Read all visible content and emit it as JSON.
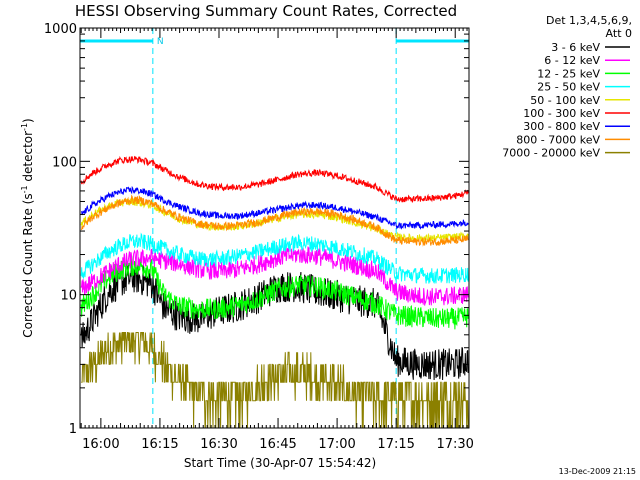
{
  "chart_data": {
    "type": "line",
    "title": "HESSI Observing Summary Count Rates, Corrected",
    "xlabel": "Start Time (30-Apr-07 15:54:42)",
    "ylabel_main": "Corrected Count Rate (s",
    "ylabel_exp1": "-1",
    "ylabel_mid": " detector",
    "ylabel_exp2": "-1",
    "ylabel_end": ")",
    "x_ticks": [
      "16:00",
      "16:15",
      "16:30",
      "16:45",
      "17:00",
      "17:15",
      "17:30"
    ],
    "x_tick_minutes": [
      0,
      15,
      30,
      45,
      60,
      75,
      90
    ],
    "x_range_minutes": [
      -5.3,
      93.5
    ],
    "y_scale": "log",
    "y_range": [
      1,
      1000
    ],
    "y_ticks": [
      "1",
      "10",
      "100",
      "1000"
    ],
    "y_tick_values": [
      1,
      10,
      100,
      1000
    ],
    "legend_header": [
      "Det 1,3,4,5,6,9,",
      "Att 0"
    ],
    "legend_position": "right",
    "night_intervals_minutes": [
      [
        -5.3,
        13.2
      ],
      [
        75.0,
        93.5
      ]
    ],
    "night_label": "N",
    "footer_date": "13-Dec-2009 21:15",
    "series": [
      {
        "name": "3 - 6 keV",
        "color": "#000000",
        "x": [
          -5,
          -2,
          2,
          5,
          8,
          10,
          13,
          16,
          20,
          25,
          30,
          35,
          40,
          45,
          50,
          55,
          60,
          65,
          70,
          75,
          80,
          85,
          90,
          93
        ],
        "y": [
          4.5,
          6.5,
          10.5,
          12.5,
          13.5,
          13,
          12,
          8,
          6.8,
          6.6,
          7.5,
          8.2,
          9.5,
          11.5,
          11.5,
          10.5,
          9.8,
          9,
          8.5,
          3.2,
          3,
          3,
          3,
          3.2
        ],
        "noise": 0.12
      },
      {
        "name": "6 - 12 keV",
        "color": "#ff00ff",
        "x": [
          -5,
          -2,
          2,
          5,
          8,
          10,
          13,
          16,
          20,
          25,
          30,
          35,
          40,
          45,
          50,
          55,
          60,
          65,
          70,
          75,
          80,
          85,
          90,
          93
        ],
        "y": [
          11,
          12.5,
          15,
          17,
          18.5,
          18.5,
          19,
          18,
          17,
          15.5,
          15,
          15.5,
          17,
          19,
          20,
          19.5,
          18,
          16.5,
          15,
          10.5,
          9.8,
          9.6,
          9.8,
          10
        ],
        "noise": 0.07
      },
      {
        "name": "12 - 25 keV",
        "color": "#00ff00",
        "x": [
          -5,
          -2,
          2,
          5,
          8,
          10,
          13,
          16,
          20,
          25,
          30,
          35,
          40,
          45,
          50,
          55,
          60,
          65,
          70,
          75,
          80,
          85,
          90,
          93
        ],
        "y": [
          8,
          10,
          13.5,
          15.5,
          16.5,
          16.5,
          15.5,
          10,
          8.2,
          7.8,
          7.8,
          8.3,
          9.3,
          11,
          11.8,
          11.5,
          10.5,
          9.5,
          8.5,
          7,
          6.8,
          6.6,
          6.6,
          6.8
        ],
        "noise": 0.08
      },
      {
        "name": "25 - 50 keV",
        "color": "#00ffff",
        "x": [
          -5,
          -2,
          2,
          5,
          8,
          10,
          13,
          16,
          20,
          25,
          30,
          35,
          40,
          45,
          50,
          55,
          60,
          65,
          70,
          75,
          80,
          85,
          90,
          93
        ],
        "y": [
          14.5,
          17,
          21,
          23.5,
          25,
          25,
          24,
          22,
          20,
          18.5,
          18.5,
          19.5,
          21,
          23,
          24.5,
          24,
          22.5,
          20.5,
          18.5,
          14.5,
          14,
          13.8,
          14,
          14.2
        ],
        "noise": 0.06
      },
      {
        "name": "50 - 100 keV",
        "color": "#e6e600",
        "x": [
          -5,
          -2,
          2,
          5,
          8,
          10,
          13,
          16,
          20,
          25,
          30,
          35,
          40,
          45,
          50,
          55,
          60,
          65,
          70,
          75,
          80,
          85,
          90,
          93
        ],
        "y": [
          34,
          40,
          46,
          49,
          50,
          49,
          47,
          42,
          37,
          33.5,
          32,
          32.5,
          34.5,
          37.5,
          40,
          40,
          38,
          34.5,
          31,
          27,
          26.5,
          26.5,
          27,
          27.5
        ],
        "noise": 0.03
      },
      {
        "name": "100 - 300 keV",
        "color": "#ff0000",
        "x": [
          -5,
          -2,
          2,
          5,
          8,
          10,
          13,
          16,
          20,
          25,
          30,
          35,
          40,
          45,
          50,
          55,
          60,
          65,
          70,
          75,
          80,
          85,
          90,
          93
        ],
        "y": [
          70,
          82,
          95,
          102,
          104,
          103,
          97,
          87,
          76,
          67,
          64,
          64,
          67,
          73,
          80,
          82,
          78,
          71,
          64,
          52,
          52,
          53,
          55,
          58
        ],
        "noise": 0.025
      },
      {
        "name": "300 - 800 keV",
        "color": "#0000ff",
        "x": [
          -5,
          -2,
          2,
          5,
          8,
          10,
          13,
          16,
          20,
          25,
          30,
          35,
          40,
          45,
          50,
          55,
          60,
          65,
          70,
          75,
          80,
          85,
          90,
          93
        ],
        "y": [
          40,
          47,
          55,
          59,
          61,
          60,
          57,
          51,
          45.5,
          41,
          39,
          39,
          41,
          43.5,
          46.5,
          47,
          45,
          41.5,
          38,
          33,
          33,
          33.5,
          34,
          35
        ],
        "noise": 0.025
      },
      {
        "name": "800 - 7000 keV",
        "color": "#ff8c00",
        "x": [
          -5,
          -2,
          2,
          5,
          8,
          10,
          13,
          16,
          20,
          25,
          30,
          35,
          40,
          45,
          50,
          55,
          60,
          65,
          70,
          75,
          80,
          85,
          90,
          93
        ],
        "y": [
          32,
          38.5,
          45,
          49,
          51.5,
          51,
          48.5,
          43,
          38,
          34,
          32.5,
          33,
          35,
          38.5,
          41.5,
          42,
          40,
          36,
          32,
          25.5,
          25,
          25,
          25.5,
          26
        ],
        "noise": 0.03
      },
      {
        "name": "7000 - 20000 keV",
        "color": "#8b8000",
        "x": [
          -5,
          -2,
          2,
          5,
          8,
          10,
          13,
          16,
          20,
          25,
          30,
          35,
          40,
          45,
          50,
          55,
          60,
          65,
          70,
          75,
          80,
          85,
          90,
          93
        ],
        "y": [
          2.2,
          3,
          4,
          4.5,
          4.8,
          4.8,
          4,
          3,
          2.2,
          1.7,
          1.6,
          1.7,
          2,
          2.5,
          2.6,
          2.4,
          2,
          1.7,
          1.6,
          1.6,
          1.6,
          1.6,
          1.6,
          1.6
        ],
        "noise": 0.16
      }
    ]
  }
}
